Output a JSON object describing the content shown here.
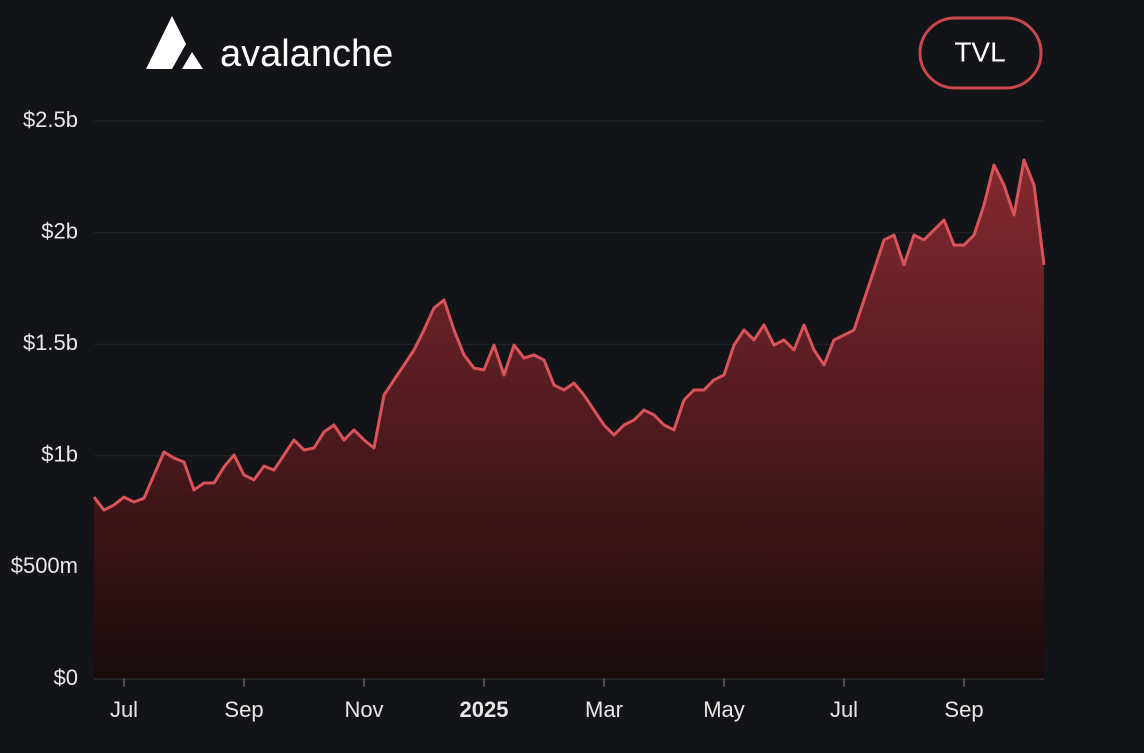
{
  "header": {
    "brand": "avalanche",
    "button": "TVL"
  },
  "chart_data": {
    "type": "area",
    "categories": [
      null,
      null,
      null,
      "Jul",
      null,
      null,
      null,
      null,
      null,
      null,
      null,
      null,
      null,
      null,
      null,
      "Sep",
      null,
      null,
      null,
      null,
      null,
      null,
      null,
      null,
      null,
      null,
      null,
      "Nov",
      null,
      null,
      null,
      null,
      null,
      null,
      null,
      null,
      null,
      null,
      null,
      "2025",
      null,
      null,
      null,
      null,
      null,
      null,
      null,
      null,
      null,
      null,
      null,
      "Mar",
      null,
      null,
      null,
      null,
      null,
      null,
      null,
      null,
      null,
      null,
      null,
      "May",
      null,
      null,
      null,
      null,
      null,
      null,
      null,
      null,
      null,
      null,
      null,
      "Jul",
      null,
      null,
      null,
      null,
      null,
      null,
      null,
      null,
      null,
      null,
      null,
      "Sep",
      null,
      null,
      null,
      null,
      null,
      null,
      null,
      null
    ],
    "series": [
      {
        "name": "TVL",
        "color": "#d9545a",
        "values": [
          0.815,
          0.757,
          0.78,
          0.815,
          0.793,
          0.81,
          0.914,
          1.017,
          0.99,
          0.972,
          0.847,
          0.878,
          0.878,
          0.95,
          1.004,
          0.914,
          0.892,
          0.954,
          0.936,
          1.004,
          1.071,
          1.026,
          1.035,
          1.107,
          1.138,
          1.071,
          1.116,
          1.071,
          1.035,
          1.272,
          1.34,
          1.407,
          1.474,
          1.564,
          1.662,
          1.698,
          1.564,
          1.452,
          1.393,
          1.385,
          1.496,
          1.362,
          1.496,
          1.438,
          1.452,
          1.429,
          1.317,
          1.295,
          1.326,
          1.272,
          1.205,
          1.138,
          1.093,
          1.138,
          1.16,
          1.205,
          1.183,
          1.138,
          1.116,
          1.25,
          1.295,
          1.295,
          1.34,
          1.362,
          1.496,
          1.564,
          1.519,
          1.586,
          1.496,
          1.519,
          1.474,
          1.586,
          1.474,
          1.407,
          1.519,
          1.541,
          1.564,
          1.698,
          1.832,
          1.967,
          1.989,
          1.855,
          1.989,
          1.967,
          2.012,
          2.056,
          1.944,
          1.944,
          1.989,
          2.124,
          2.303,
          2.213,
          2.079,
          2.325,
          2.213,
          1.855
        ]
      }
    ],
    "ylim": [
      0,
      2.5
    ],
    "yticks": [
      {
        "value": 0,
        "label": "$0"
      },
      {
        "value": 0.5,
        "label": "$500m"
      },
      {
        "value": 1,
        "label": "$1b"
      },
      {
        "value": 1.5,
        "label": "$1.5b"
      },
      {
        "value": 2,
        "label": "$2b"
      },
      {
        "value": 2.5,
        "label": "$2.5b"
      }
    ],
    "grid": true
  }
}
